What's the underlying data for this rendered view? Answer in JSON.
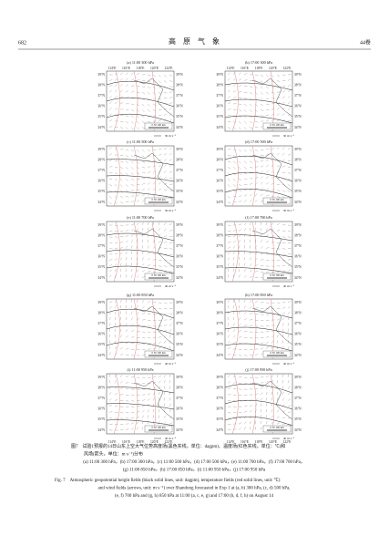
{
  "header": {
    "page": "682",
    "journal": "高　原　气　象",
    "volume": "44卷"
  },
  "lon_labels": [
    "114°E",
    "116°E",
    "118°E",
    "120°E",
    "122°E"
  ],
  "lat_labels": [
    "39°N",
    "38°N",
    "37°N",
    "36°N",
    "35°N",
    "34°N"
  ],
  "scale_bar": "0  50 100 km",
  "panels": [
    {
      "label": "(a) 11:00  300 hPa",
      "wind_ref": "30 m·s⁻¹"
    },
    {
      "label": "(b) 17:00  300 hPa",
      "wind_ref": "30 m·s⁻¹"
    },
    {
      "label": "(c) 11:00  500 hPa",
      "wind_ref": "30 m·s⁻¹"
    },
    {
      "label": "(d) 17:00  500 hPa",
      "wind_ref": "30 m·s⁻¹"
    },
    {
      "label": "(e) 11:00  700 hPa",
      "wind_ref": "40 m·s⁻¹"
    },
    {
      "label": "(f) 17:00  700 hPa",
      "wind_ref": "40 m·s⁻¹"
    },
    {
      "label": "(g) 11:00  850 hPa",
      "wind_ref": "40 m·s⁻¹"
    },
    {
      "label": "(h) 17:00  850 hPa",
      "wind_ref": "40 m·s⁻¹"
    },
    {
      "label": "(i) 11:00  950 hPa",
      "wind_ref": "40 m·s⁻¹"
    },
    {
      "label": "(j) 17:00  950 hPa",
      "wind_ref": "40 m·s⁻¹"
    }
  ],
  "caption": {
    "cn": [
      "图7　试验1预报的14日山东上空大气位势高度场(黑色实线，单位：dagpm)、温度场(红色实线，单位：℃)和",
      "风场(箭头，单位：m·s⁻¹)分布",
      "(a) 11:00 300 hPa，(b) 17:00 300 hPa，(c) 11:00 500 hPa，(d) 17:00 500 hPa，(e) 11:00 700 hPa，(f) 17:00 700 hPa，",
      "(g) 11:00 850 hPa，(h) 17:00 850 hPa，(i) 11:00 950 hPa，(j) 17:00 950 hPa"
    ],
    "en": [
      "Fig. 7　Atmospheric geopotential height fields (black solid lines, unit: dagpm), temperature fields (red solid lines, unit: ℃)",
      "and wind fields (arrows, unit: m·s⁻¹) over Shandong forecasted in Exp 1 at (a, b) 300 hPa, (c, d) 500 hPa,",
      "(e, f) 700 hPa and (g, h) 850 hPa at 11:00 (a, c, e, g) and 17:00 (b, d, f, h) on August 14"
    ]
  }
}
